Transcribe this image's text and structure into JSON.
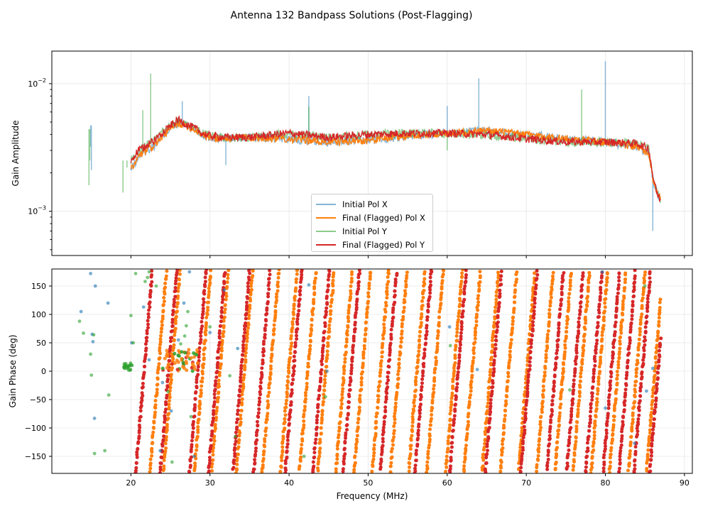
{
  "figure": {
    "title": "Antenna 132 Bandpass Solutions (Post-Flagging)"
  },
  "colors": {
    "initial_x": "#1f77b4",
    "final_x": "#ff7f0e",
    "initial_y": "#2ca02c",
    "final_y": "#d62728",
    "grid": "#e6e6e6"
  },
  "chart_data": [
    {
      "type": "line",
      "panel": "amplitude",
      "ylabel": "Gain Amplitude",
      "yscale": "log",
      "xlim": [
        10,
        91
      ],
      "ylim": [
        0.00045,
        0.018
      ],
      "yticks": [
        {
          "value": 0.01,
          "base": "10",
          "exp": "−2"
        },
        {
          "value": 0.001,
          "base": "10",
          "exp": "−3"
        }
      ],
      "xticks": [
        20,
        30,
        40,
        50,
        60,
        70,
        80,
        90
      ],
      "legend": {
        "position": "lower-center",
        "entries": [
          "Initial Pol X",
          "Final (Flagged) Pol X",
          "Initial Pol Y",
          "Final (Flagged) Pol Y"
        ]
      },
      "series": [
        {
          "name": "Final (Flagged) Pol X",
          "x": [
            20,
            21,
            22,
            23,
            24,
            25,
            26,
            27,
            28,
            29,
            30,
            32,
            35,
            40,
            45,
            50,
            55,
            60,
            65,
            70,
            75,
            80,
            84,
            85.5,
            86,
            86.5,
            87
          ],
          "y": [
            0.0021,
            0.0027,
            0.003,
            0.0033,
            0.0039,
            0.0044,
            0.0049,
            0.0047,
            0.0044,
            0.004,
            0.0038,
            0.0037,
            0.0038,
            0.0037,
            0.0035,
            0.0036,
            0.0039,
            0.0041,
            0.0043,
            0.004,
            0.0037,
            0.0035,
            0.0032,
            0.0028,
            0.0018,
            0.0014,
            0.00125
          ]
        },
        {
          "name": "Final (Flagged) Pol Y",
          "x": [
            20,
            21,
            22,
            23,
            24,
            25,
            26,
            27,
            28,
            29,
            30,
            32,
            35,
            40,
            45,
            50,
            55,
            60,
            65,
            70,
            75,
            80,
            84,
            85.5,
            86,
            86.5,
            87
          ],
          "y": [
            0.0025,
            0.003,
            0.0033,
            0.0036,
            0.0042,
            0.0047,
            0.0052,
            0.0048,
            0.0045,
            0.0041,
            0.0039,
            0.0038,
            0.0038,
            0.0041,
            0.0038,
            0.004,
            0.0041,
            0.0041,
            0.004,
            0.0037,
            0.0035,
            0.0035,
            0.0034,
            0.0031,
            0.0019,
            0.0014,
            0.0012
          ]
        },
        {
          "name": "Initial Pol X",
          "x": [
            15,
            20,
            26.5,
            32,
            42.5,
            60,
            64,
            80,
            86
          ],
          "y": [
            0.0047,
            0.0022,
            0.0073,
            0.0023,
            0.008,
            0.0067,
            0.011,
            0.015,
            0.0007
          ]
        },
        {
          "name": "Initial Pol Y",
          "x": [
            14.8,
            19,
            19.5,
            21.5,
            22.5,
            42.5,
            60,
            77
          ],
          "y": [
            0.0044,
            0.0015,
            0.0022,
            0.0062,
            0.012,
            0.0066,
            0.003,
            0.009
          ]
        }
      ]
    },
    {
      "type": "scatter",
      "panel": "phase",
      "xlabel": "Frequency (MHz)",
      "ylabel": "Gain Phase (deg)",
      "xlim": [
        10,
        91
      ],
      "ylim": [
        -180,
        180
      ],
      "yticks": [
        -150,
        -100,
        -50,
        0,
        50,
        100,
        150
      ],
      "xticks": [
        20,
        30,
        40,
        50,
        60,
        70,
        80,
        90
      ],
      "wrap_slope_deg_per_mhz": 170,
      "final_x_stripe_starts_mhz": [
        22.4,
        24.1,
        28.0,
        30.2,
        33.3,
        36.6,
        38.9,
        41.3,
        43.6,
        45.9,
        48.2,
        50.5,
        52.8,
        55.1,
        57.4,
        59.8,
        62.1,
        64.4,
        66.7,
        69.0,
        71.3,
        73.6,
        75.9,
        78.2,
        80.5,
        82.9,
        85.2
      ],
      "final_y_stripe_starts_mhz": [
        20.6,
        23.7,
        27.4,
        29.8,
        32.9,
        35.5,
        39.5,
        43.0,
        46.8,
        51.5,
        55.9,
        60.3,
        64.8,
        69.3,
        72.6,
        75.1,
        77.5,
        79.7,
        81.7,
        83.6,
        85.6
      ],
      "stray_points": {
        "initial_x": [
          [
            13.7,
            105
          ],
          [
            14.9,
            172
          ],
          [
            15.1,
            65
          ],
          [
            15.2,
            52
          ],
          [
            15.5,
            150
          ],
          [
            15.4,
            -83
          ],
          [
            17.1,
            120
          ],
          [
            20.1,
            50
          ],
          [
            21.6,
            113
          ],
          [
            22.3,
            20
          ],
          [
            23.7,
            -140
          ],
          [
            24.0,
            -20
          ],
          [
            25.1,
            -70
          ],
          [
            26.0,
            55
          ],
          [
            26.7,
            120
          ],
          [
            27.4,
            175
          ],
          [
            28.0,
            -150
          ],
          [
            30.0,
            68
          ],
          [
            31.8,
            143
          ],
          [
            33.5,
            40
          ],
          [
            42.5,
            152
          ],
          [
            44.8,
            0
          ],
          [
            60.3,
            78
          ],
          [
            63.8,
            3
          ],
          [
            79.6,
            175
          ],
          [
            80.0,
            -65
          ],
          [
            83.7,
            -127
          ],
          [
            85.2,
            -35
          ],
          [
            86.0,
            5
          ]
        ],
        "initial_y": [
          [
            13.5,
            88
          ],
          [
            14.0,
            67
          ],
          [
            14.9,
            30
          ],
          [
            15.0,
            -7
          ],
          [
            15.3,
            64
          ],
          [
            15.4,
            -145
          ],
          [
            16.7,
            -140
          ],
          [
            17.2,
            -42
          ],
          [
            19.2,
            5
          ],
          [
            19.4,
            10
          ],
          [
            19.7,
            2
          ],
          [
            20.0,
            98
          ],
          [
            20.3,
            50
          ],
          [
            20.6,
            172
          ],
          [
            21.8,
            158
          ],
          [
            22.1,
            165
          ],
          [
            22.3,
            175
          ],
          [
            23.2,
            150
          ],
          [
            24.7,
            -36
          ],
          [
            25.2,
            -160
          ],
          [
            26.3,
            48
          ],
          [
            26.8,
            62
          ],
          [
            27.0,
            80
          ],
          [
            27.2,
            105
          ],
          [
            27.6,
            -80
          ],
          [
            28.1,
            30
          ],
          [
            30.0,
            78
          ],
          [
            32.5,
            -8
          ],
          [
            33.2,
            -115
          ],
          [
            41.9,
            -150
          ],
          [
            44.6,
            -45
          ],
          [
            60.4,
            45
          ],
          [
            75.5,
            -33
          ],
          [
            85.0,
            150
          ]
        ]
      }
    }
  ]
}
